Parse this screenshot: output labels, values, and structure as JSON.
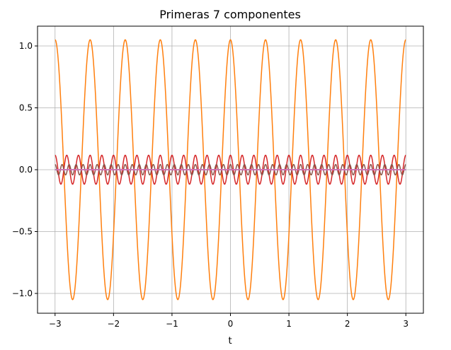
{
  "chart_data": {
    "type": "line",
    "title": "Primeras 7 componentes",
    "xlabel": "t",
    "ylabel": "",
    "xlim": [
      -3.3,
      3.3
    ],
    "ylim": [
      -1.16,
      1.16
    ],
    "x_range": [
      -3,
      3
    ],
    "grid": true,
    "x_ticks": [
      -3,
      -2,
      -1,
      0,
      1,
      2,
      3
    ],
    "x_tick_labels": [
      "−3",
      "−2",
      "−1",
      "0",
      "1",
      "2",
      "3"
    ],
    "y_ticks": [
      -1.0,
      -0.5,
      0.0,
      0.5,
      1.0
    ],
    "y_tick_labels": [
      "−1.0",
      "−0.5",
      "0.0",
      "0.5",
      "1.0"
    ],
    "series": [
      {
        "color": "#1f77b4",
        "amplitude": 0.0,
        "cycles_per_unit": 0.0,
        "shape": "cosine"
      },
      {
        "color": "#ff7f0e",
        "amplitude": 1.05,
        "cycles_per_unit": 1.6667,
        "shape": "cosine"
      },
      {
        "color": "#2ca02c",
        "amplitude": 0.0,
        "cycles_per_unit": 3.3333,
        "shape": "cosine"
      },
      {
        "color": "#d62728",
        "amplitude": 0.117,
        "cycles_per_unit": 5.0,
        "shape": "cosine"
      },
      {
        "color": "#9467bd",
        "amplitude": 0.0,
        "cycles_per_unit": 6.6667,
        "shape": "cosine"
      },
      {
        "color": "#8c564b",
        "amplitude": 0.042,
        "cycles_per_unit": 8.3333,
        "shape": "cosine"
      },
      {
        "color": "#e377c2",
        "amplitude": 0.0,
        "cycles_per_unit": 10.0,
        "shape": "cosine"
      }
    ]
  }
}
